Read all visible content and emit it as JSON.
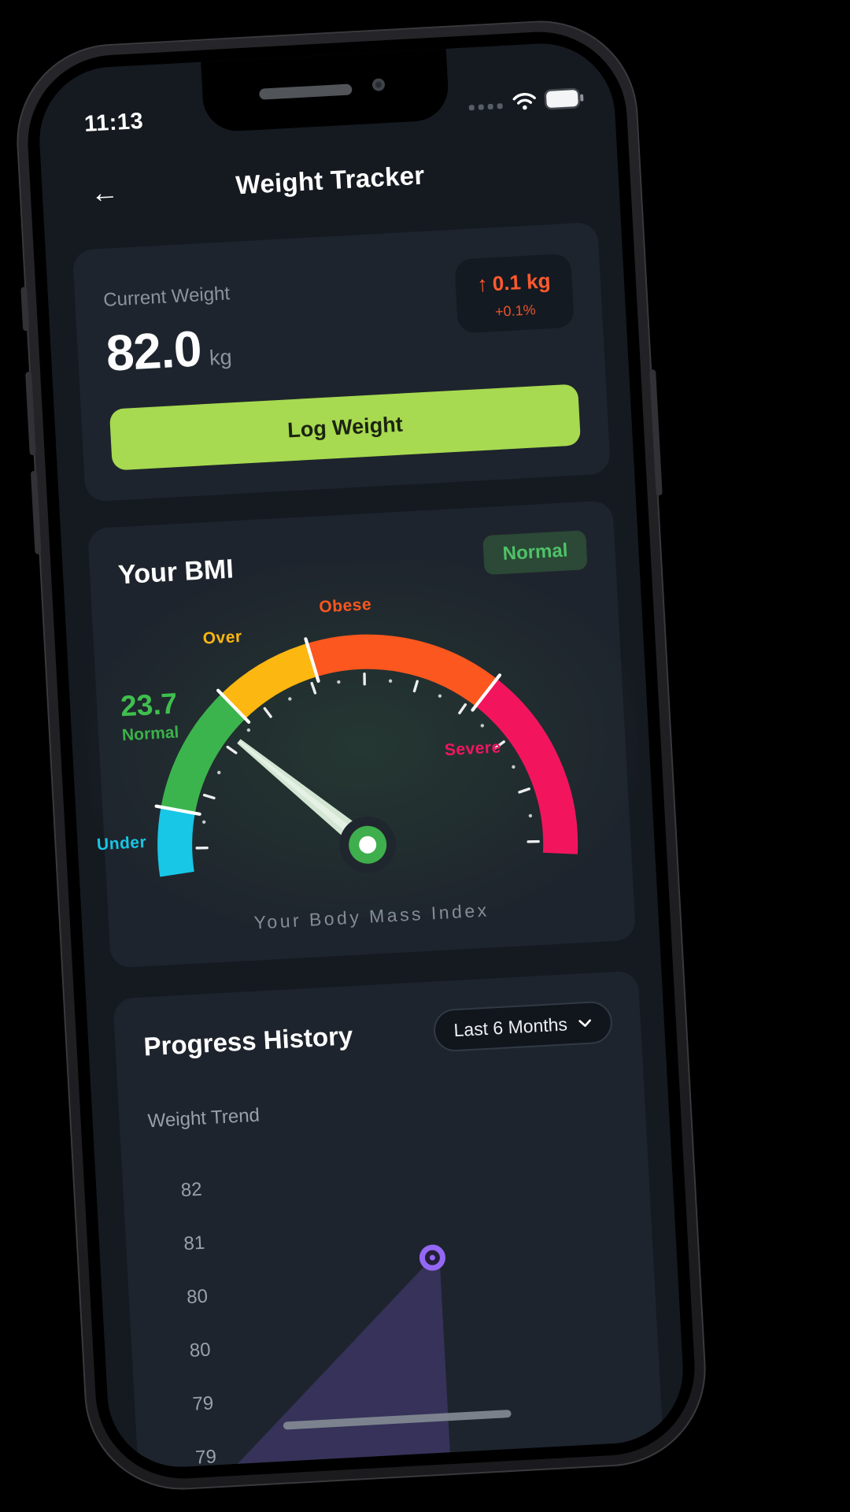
{
  "status_bar": {
    "time": "11:13",
    "battery_level": "full"
  },
  "header": {
    "back_icon": "←",
    "title": "Weight Tracker"
  },
  "current_weight_card": {
    "label": "Current Weight",
    "value": "82.0",
    "unit": "kg",
    "change_arrow": "↑",
    "change_amount": "0.1 kg",
    "change_percent": "+0.1%",
    "log_button_label": "Log Weight"
  },
  "bmi_card": {
    "title": "Your BMI"
  },
  "progress_card": {
    "title": "Progress History",
    "filter_label": "Last 6 Months",
    "chart_title": "Weight Trend"
  },
  "colors": {
    "accent_green": "#a7da50",
    "alert_orange": "#ff5a2e",
    "badge_green": "#4fc268",
    "trend_purple": "#9468f5",
    "card_bg": "#1e242d",
    "screen_bg": "#151a21"
  },
  "chart_data": [
    {
      "type": "gauge",
      "title": "Your BMI",
      "value": 23.7,
      "status": "Normal",
      "min": 15,
      "max": 50,
      "caption": "Your Body Mass Index",
      "segments": [
        {
          "label": "Under",
          "from": 15,
          "to": 18.5,
          "color": "#18c6e6"
        },
        {
          "label": "Normal",
          "from": 18.5,
          "to": 25,
          "color": "#3cb44d"
        },
        {
          "label": "Over",
          "from": 25,
          "to": 30,
          "color": "#fcb711"
        },
        {
          "label": "Obese",
          "from": 30,
          "to": 40,
          "color": "#fb571f"
        },
        {
          "label": "Severe",
          "from": 40,
          "to": 50,
          "color": "#f2155e"
        }
      ]
    },
    {
      "type": "area",
      "title": "Weight Trend",
      "y_tick_labels": [
        "82",
        "81",
        "80",
        "80",
        "79",
        "79"
      ],
      "point": {
        "value_kg": 80.5,
        "x_frac": 0.55,
        "y_row": 1.5
      },
      "accent_color": "#9468f5",
      "fill_color": "rgba(124,92,220,0.26)"
    }
  ]
}
